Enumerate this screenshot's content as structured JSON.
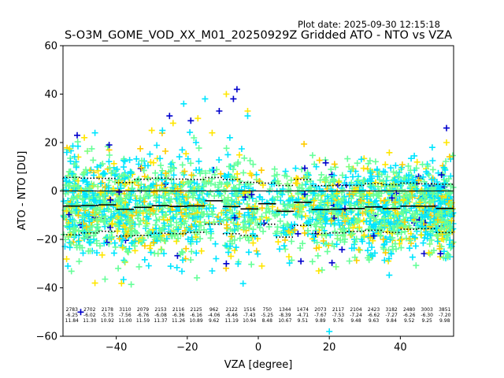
{
  "header": {
    "plot_date": "Plot date: 2025-09-30 12:15:18",
    "title": "S-O3M_GOME_VOD_XX_M01_20250929Z Gridded ATO - NTO vs VZA"
  },
  "colors": {
    "points": [
      "#00e5ff",
      "#66ff99",
      "#ffe600",
      "#ffcc00",
      "#0000cc",
      "#7fff7f"
    ],
    "mean_line": "#000000",
    "zero_line": "#000000"
  },
  "chart_data": {
    "type": "scatter",
    "title": "S-O3M_GOME_VOD_XX_M01_20250929Z Gridded ATO - NTO vs VZA",
    "xlabel": "VZA [degree]",
    "ylabel": "ATO - NTO [DU]",
    "xlim": [
      -55,
      55
    ],
    "ylim": [
      -60,
      60
    ],
    "xticks": [
      -40,
      -20,
      0,
      20,
      40
    ],
    "yticks": [
      -60,
      -40,
      -20,
      0,
      20,
      40,
      60
    ],
    "xtick_labels": [
      "−40",
      "−20",
      "0",
      "20",
      "40"
    ],
    "ytick_labels": [
      "−60",
      "−40",
      "−20",
      "0",
      "20",
      "40",
      "60"
    ],
    "bins": [
      {
        "vza": -52.5,
        "count": "2783",
        "mean": "-6.25",
        "std": "11.84"
      },
      {
        "vza": -47.5,
        "count": "2702",
        "mean": "-6.02",
        "std": "11.30"
      },
      {
        "vza": -42.5,
        "count": "2178",
        "mean": "-5.73",
        "std": "10.92"
      },
      {
        "vza": -37.5,
        "count": "3110",
        "mean": "-7.56",
        "std": "11.00"
      },
      {
        "vza": -32.5,
        "count": "2079",
        "mean": "-6.76",
        "std": "11.59"
      },
      {
        "vza": -27.5,
        "count": "2153",
        "mean": "-6.08",
        "std": "11.37"
      },
      {
        "vza": -22.5,
        "count": "2116",
        "mean": "-6.36",
        "std": "11.26"
      },
      {
        "vza": -17.5,
        "count": "2125",
        "mean": "-6.16",
        "std": "10.89"
      },
      {
        "vza": -12.5,
        "count": "962",
        "mean": "-4.06",
        "std": "9.62"
      },
      {
        "vza": -7.5,
        "count": "2122",
        "mean": "-6.46",
        "std": "11.19"
      },
      {
        "vza": -2.5,
        "count": "1516",
        "mean": "-7.43",
        "std": "10.94"
      },
      {
        "vza": 2.5,
        "count": "750",
        "mean": "-5.25",
        "std": "8.48"
      },
      {
        "vza": 7.5,
        "count": "1344",
        "mean": "-8.39",
        "std": "10.67"
      },
      {
        "vza": 12.5,
        "count": "1474",
        "mean": "-4.71",
        "std": "9.51"
      },
      {
        "vza": 17.5,
        "count": "2073",
        "mean": "-7.67",
        "std": "9.89"
      },
      {
        "vza": 22.5,
        "count": "2117",
        "mean": "-7.53",
        "std": "9.76"
      },
      {
        "vza": 27.5,
        "count": "2104",
        "mean": "-7.24",
        "std": "9.48"
      },
      {
        "vza": 32.5,
        "count": "2423",
        "mean": "-6.62",
        "std": "9.63"
      },
      {
        "vza": 37.5,
        "count": "3182",
        "mean": "-7.27",
        "std": "9.84"
      },
      {
        "vza": 42.5,
        "count": "2480",
        "mean": "-6.26",
        "std": "9.52"
      },
      {
        "vza": 47.5,
        "count": "3003",
        "mean": "-6.30",
        "std": "9.25"
      },
      {
        "vza": 52.5,
        "count": "3851",
        "mean": "-7.20",
        "std": "9.98"
      }
    ],
    "outlier_points": [
      {
        "x": -51,
        "y": 23
      },
      {
        "x": -49,
        "y": 22
      },
      {
        "x": -46,
        "y": 24
      },
      {
        "x": -42,
        "y": 19
      },
      {
        "x": -30,
        "y": 25
      },
      {
        "x": -27,
        "y": 25
      },
      {
        "x": -25,
        "y": 31
      },
      {
        "x": -24,
        "y": 28
      },
      {
        "x": -21,
        "y": 36
      },
      {
        "x": -19,
        "y": 29
      },
      {
        "x": -17,
        "y": 30
      },
      {
        "x": -15,
        "y": 38
      },
      {
        "x": -11,
        "y": 33
      },
      {
        "x": -9,
        "y": 40
      },
      {
        "x": -8,
        "y": 22
      },
      {
        "x": -7,
        "y": 38
      },
      {
        "x": -3,
        "y": 33
      },
      {
        "x": -3,
        "y": 31
      },
      {
        "x": 53,
        "y": 26
      },
      {
        "x": 53,
        "y": 20
      },
      {
        "x": 49,
        "y": 18
      },
      {
        "x": -50,
        "y": -50
      },
      {
        "x": -46,
        "y": -38
      },
      {
        "x": -13,
        "y": -33
      },
      {
        "x": -9,
        "y": -30
      },
      {
        "x": 1,
        "y": -31
      },
      {
        "x": 6,
        "y": -24
      },
      {
        "x": 12,
        "y": -29
      },
      {
        "x": 17,
        "y": -33
      },
      {
        "x": 20,
        "y": -58
      },
      {
        "x": -6,
        "y": 42
      },
      {
        "x": -13,
        "y": 24
      }
    ]
  }
}
